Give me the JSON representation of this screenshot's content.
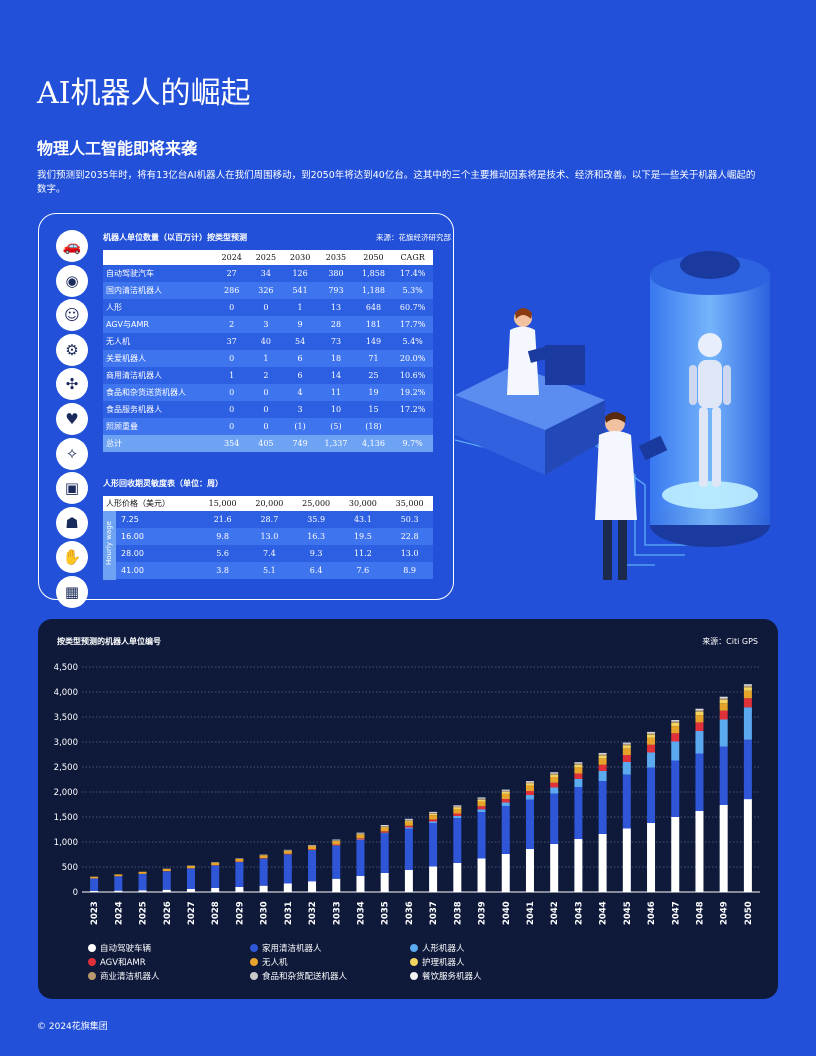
{
  "page_title": "AI机器人的崛起",
  "section_title": "物理人工智能即将来袭",
  "intro": "我们预测到2035年时，将有13亿台AI机器人在我们周围移动，到2050年将达到40亿台。这其中的三个主要推动因素将是技术、经济和改善。以下是一些关于机器人崛起的数字。",
  "icons": [
    "autonomous-car-icon",
    "robot-vacuum-icon",
    "humanoid-head-icon",
    "robot-arm-icon",
    "drone-icon",
    "care-robot-icon",
    "cleaning-robot-icon",
    "delivery-robot-icon",
    "service-robot-icon",
    "hand-icon",
    "chip-icon"
  ],
  "units_table": {
    "title": "机器人单位数量（以百万计）按类型预测",
    "source": "来源：花旗经济研究部",
    "headers": [
      "",
      "2024",
      "2025",
      "2030",
      "2035",
      "2050",
      "CAGR"
    ],
    "rows": [
      [
        "自动驾驶汽车",
        "27",
        "34",
        "126",
        "380",
        "1,858",
        "17.4%"
      ],
      [
        "国内清洁机器人",
        "286",
        "326",
        "541",
        "793",
        "1,188",
        "5.3%"
      ],
      [
        "人形",
        "0",
        "0",
        "1",
        "13",
        "648",
        "60.7%"
      ],
      [
        "AGV与AMR",
        "2",
        "3",
        "9",
        "28",
        "181",
        "17.7%"
      ],
      [
        "无人机",
        "37",
        "40",
        "54",
        "73",
        "149",
        "5.4%"
      ],
      [
        "关爱机器人",
        "0",
        "1",
        "6",
        "18",
        "71",
        "20.0%"
      ],
      [
        "商用清洁机器人",
        "1",
        "2",
        "6",
        "14",
        "25",
        "10.6%"
      ],
      [
        "食品和杂货送货机器人",
        "0",
        "0",
        "4",
        "11",
        "19",
        "19.2%"
      ],
      [
        "食品服务机器人",
        "0",
        "0",
        "3",
        "10",
        "15",
        "17.2%"
      ],
      [
        "照顾重叠",
        "0",
        "0",
        "(1)",
        "(5)",
        "(18)",
        ""
      ]
    ],
    "total": [
      "总计",
      "354",
      "405",
      "749",
      "1,337",
      "4,136",
      "9.7%"
    ]
  },
  "payback_table": {
    "title": "人形回收期灵敏度表（单位：周）",
    "headers": [
      "人形价格（美元）",
      "15,000",
      "20,000",
      "25,000",
      "30,000",
      "35,000"
    ],
    "side_label": "Hourly wage",
    "rows": [
      [
        "7.25",
        "21.6",
        "28.7",
        "35.9",
        "43.1",
        "50.3"
      ],
      [
        "16.00",
        "9.8",
        "13.0",
        "16.3",
        "19.5",
        "22.8"
      ],
      [
        "28.00",
        "5.6",
        "7.4",
        "9.3",
        "11.2",
        "13.0"
      ],
      [
        "41.00",
        "3.8",
        "5.1",
        "6.4",
        "7.6",
        "8.9"
      ]
    ]
  },
  "chart_data": {
    "type": "bar",
    "stacked": true,
    "title": "按类型预测的机器人单位编号",
    "source": "来源：Citi GPS",
    "ylim": [
      0,
      4500
    ],
    "yticks": [
      "0",
      "500",
      "1,000",
      "1,500",
      "2,000",
      "2,500",
      "3,000",
      "3,500",
      "4,000",
      "4,500"
    ],
    "grid": true,
    "legend_position": "bottom-left",
    "categories": [
      "2023",
      "2024",
      "2025",
      "2026",
      "2027",
      "2028",
      "2029",
      "2030",
      "2031",
      "2032",
      "2033",
      "2034",
      "2035",
      "2036",
      "2037",
      "2038",
      "2039",
      "2040",
      "2041",
      "2042",
      "2043",
      "2044",
      "2045",
      "2046",
      "2047",
      "2048",
      "2049",
      "2050"
    ],
    "series": [
      {
        "name": "自动驾驶车辆",
        "color": "#ffffff",
        "values": [
          20,
          27,
          34,
          45,
          60,
          80,
          100,
          126,
          170,
          215,
          265,
          320,
          380,
          440,
          510,
          580,
          670,
          760,
          860,
          960,
          1060,
          1160,
          1270,
          1380,
          1500,
          1620,
          1740,
          1858
        ]
      },
      {
        "name": "家用清洁机器人",
        "color": "#2f56d6",
        "values": [
          250,
          286,
          326,
          370,
          410,
          450,
          500,
          541,
          580,
          620,
          660,
          720,
          793,
          830,
          870,
          900,
          930,
          960,
          990,
          1010,
          1040,
          1060,
          1080,
          1110,
          1130,
          1150,
          1170,
          1188
        ]
      },
      {
        "name": "人形机器人",
        "color": "#5ba9ef",
        "values": [
          0,
          0,
          0,
          0,
          0,
          0,
          0,
          1,
          2,
          4,
          7,
          10,
          13,
          20,
          30,
          40,
          55,
          70,
          90,
          120,
          160,
          200,
          250,
          300,
          380,
          450,
          540,
          648
        ]
      },
      {
        "name": "AGV和AMR",
        "color": "#e0303a",
        "values": [
          2,
          2,
          3,
          4,
          5,
          6,
          7,
          9,
          11,
          14,
          18,
          23,
          28,
          35,
          42,
          50,
          60,
          70,
          80,
          95,
          110,
          125,
          140,
          155,
          165,
          172,
          178,
          181
        ]
      },
      {
        "name": "无人机",
        "color": "#e6a52a",
        "values": [
          35,
          37,
          40,
          43,
          46,
          49,
          52,
          54,
          56,
          59,
          63,
          68,
          73,
          78,
          84,
          90,
          96,
          102,
          108,
          115,
          122,
          128,
          134,
          139,
          143,
          146,
          148,
          149
        ]
      },
      {
        "name": "护理机器人",
        "color": "#f3d45e",
        "values": [
          0,
          0,
          1,
          2,
          3,
          4,
          5,
          6,
          8,
          10,
          13,
          15,
          18,
          22,
          26,
          30,
          34,
          38,
          42,
          46,
          50,
          54,
          58,
          62,
          65,
          68,
          70,
          71
        ]
      },
      {
        "name": "商业清洁机器人",
        "color": "#b89a6c",
        "values": [
          1,
          1,
          2,
          3,
          4,
          5,
          5,
          6,
          7,
          8,
          10,
          12,
          14,
          15,
          16,
          17,
          18,
          19,
          20,
          21,
          22,
          23,
          23,
          24,
          24,
          25,
          25,
          25
        ]
      },
      {
        "name": "食品和杂货配送机器人",
        "color": "#c9c9c9",
        "values": [
          0,
          0,
          0,
          1,
          2,
          3,
          3,
          4,
          5,
          6,
          8,
          10,
          11,
          12,
          13,
          14,
          15,
          15,
          16,
          16,
          17,
          17,
          18,
          18,
          18,
          19,
          19,
          19
        ]
      },
      {
        "name": "餐饮服务机器人",
        "color": "#f2f2f2",
        "values": [
          0,
          0,
          0,
          1,
          1,
          2,
          2,
          3,
          4,
          5,
          7,
          8,
          10,
          11,
          11,
          12,
          12,
          13,
          13,
          13,
          14,
          14,
          14,
          14,
          15,
          15,
          15,
          15
        ]
      }
    ]
  },
  "footer": "© 2024花旗集团"
}
